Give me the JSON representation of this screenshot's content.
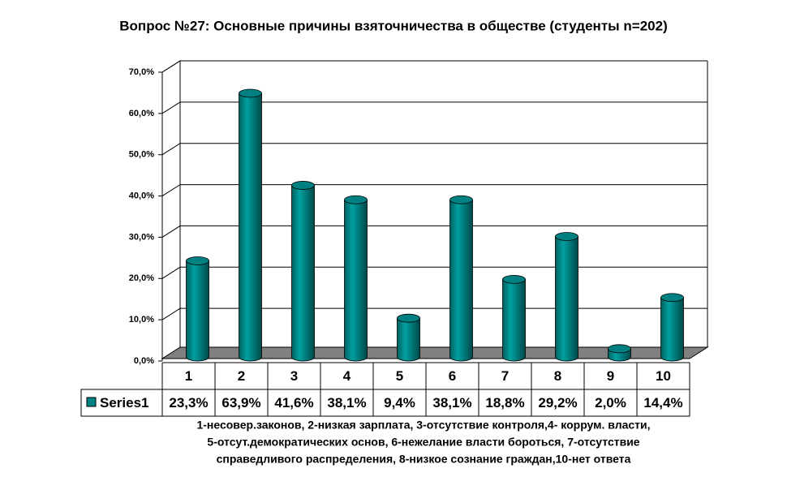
{
  "chart_data": {
    "type": "bar3d",
    "title": "Вопрос №27: Основные причины взяточничества в обществе (студенты n=202)",
    "categories": [
      "1",
      "2",
      "3",
      "4",
      "5",
      "6",
      "7",
      "8",
      "9",
      "10"
    ],
    "series": [
      {
        "name": "Series1",
        "color": "#008080",
        "values": [
          23.3,
          63.9,
          41.6,
          38.1,
          9.4,
          38.1,
          18.8,
          29.2,
          2.0,
          14.4
        ],
        "value_labels": [
          "23,3%",
          "63,9%",
          "41,6%",
          "38,1%",
          "9,4%",
          "38,1%",
          "18,8%",
          "29,2%",
          "2,0%",
          "14,4%"
        ]
      }
    ],
    "ylim": [
      0,
      70
    ],
    "yticks": [
      {
        "value": 0,
        "label": "0,0%"
      },
      {
        "value": 10,
        "label": "10,0%"
      },
      {
        "value": 20,
        "label": "20,0%"
      },
      {
        "value": 30,
        "label": "30,0%"
      },
      {
        "value": 40,
        "label": "40,0%"
      },
      {
        "value": 50,
        "label": "50,0%"
      },
      {
        "value": 60,
        "label": "60,0%"
      },
      {
        "value": 70,
        "label": "70,0%"
      }
    ],
    "grid": true,
    "note": [
      "1-несовер.законов, 2-низкая зарплата, 3-отсутствие контроля,4- коррум. власти,",
      "5-отсут.демократических основ, 6-нежелание власти бороться, 7-отсутствие",
      "справедливого распределения, 8-низкое сознание граждан,10-нет ответа"
    ]
  }
}
